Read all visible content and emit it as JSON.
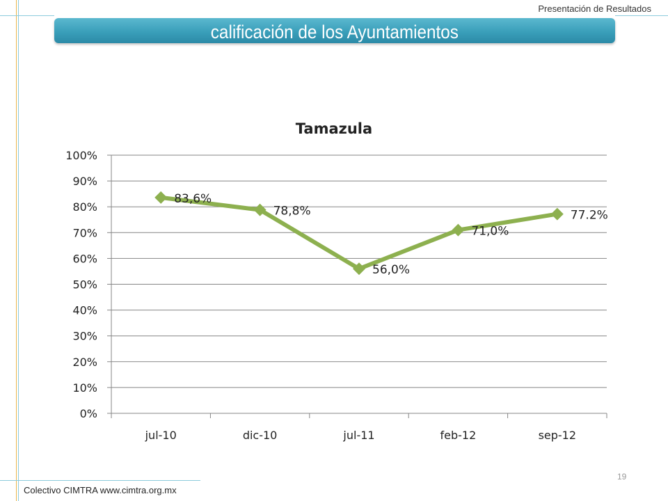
{
  "header": {
    "text": "Presentación de Resultados"
  },
  "slide": {
    "title": "calificación de los  Ayuntamientos"
  },
  "footer": {
    "text": "Colectivo CIMTRA www.cimtra.org.mx",
    "page_number": "19"
  },
  "colors": {
    "title_bar": "#3a9fba",
    "line": "#8db04f",
    "grid": "#858585",
    "deco_line": "#e8b54a"
  },
  "chart_data": {
    "type": "line",
    "title": "Tamazula",
    "categories": [
      "jul-10",
      "dic-10",
      "jul-11",
      "feb-12",
      "sep-12"
    ],
    "series": [
      {
        "values": [
          83.6,
          78.8,
          56.0,
          71.0,
          77.2
        ]
      }
    ],
    "data_labels": [
      "83,6%",
      "78,8%",
      "56,0%",
      "71,0%",
      "77.2%"
    ],
    "y_ticks": [
      "0%",
      "10%",
      "20%",
      "30%",
      "40%",
      "50%",
      "60%",
      "70%",
      "80%",
      "90%",
      "100%"
    ],
    "ylim": [
      0,
      100
    ],
    "grid": true,
    "legend": "none",
    "marker": "diamond"
  }
}
